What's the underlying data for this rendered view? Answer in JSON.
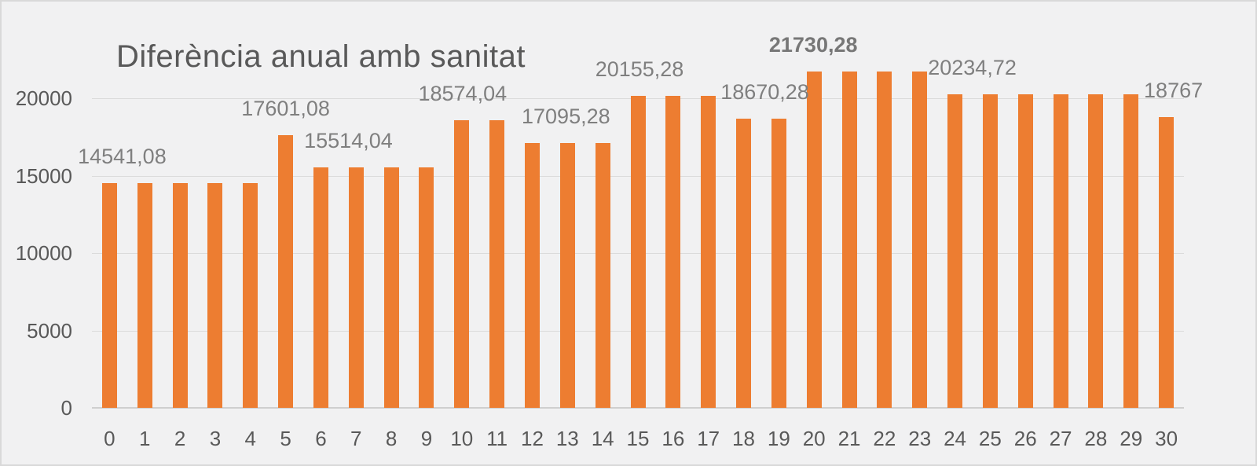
{
  "chart_data": {
    "type": "bar",
    "title": "Diferència anual amb sanitat",
    "xlabel": "",
    "ylabel": "",
    "categories": [
      "0",
      "1",
      "2",
      "3",
      "4",
      "5",
      "6",
      "7",
      "8",
      "9",
      "10",
      "11",
      "12",
      "13",
      "14",
      "15",
      "16",
      "17",
      "18",
      "19",
      "20",
      "21",
      "22",
      "23",
      "24",
      "25",
      "26",
      "27",
      "28",
      "29",
      "30"
    ],
    "values": [
      14541.08,
      14541.08,
      14541.08,
      14541.08,
      14541.08,
      17601.08,
      15514.04,
      15514.04,
      15514.04,
      15514.04,
      18574.04,
      18574.04,
      17095.28,
      17095.28,
      17095.28,
      20155.28,
      20155.28,
      20155.28,
      18670.28,
      18670.28,
      21730.28,
      21730.28,
      21730.28,
      21730.28,
      20234.72,
      20234.72,
      20234.72,
      20234.72,
      20234.72,
      20234.72,
      18767
    ],
    "ylim": [
      0,
      22000
    ],
    "yticks": [
      {
        "value": 0,
        "label": "0"
      },
      {
        "value": 5000,
        "label": "5000"
      },
      {
        "value": 10000,
        "label": "10000"
      },
      {
        "value": 15000,
        "label": "15000"
      },
      {
        "value": 20000,
        "label": "20000"
      }
    ],
    "grid": true,
    "legend": "none",
    "bar_color": "#ED7D31",
    "data_labels": [
      {
        "text": "14541,08",
        "bar": 0,
        "dx": 16,
        "bold": false
      },
      {
        "text": "17601,08",
        "bar": 5,
        "dx": 0,
        "bold": false
      },
      {
        "text": "15514,04",
        "bar": 6,
        "dx": 35,
        "bold": false
      },
      {
        "text": "18574,04",
        "bar": 10,
        "dx": 1,
        "bold": false
      },
      {
        "text": "17095,28",
        "bar": 13,
        "dx": -2,
        "bold": false
      },
      {
        "text": "20155,28",
        "bar": 15,
        "dx": 2,
        "bold": false
      },
      {
        "text": "18670,28",
        "bar": 18,
        "dx": 27,
        "bold": false
      },
      {
        "text": "21730,28",
        "bar": 20,
        "dx": -1,
        "bold": true
      },
      {
        "text": "20234,72",
        "bar": 24,
        "dx": 22,
        "bold": false
      },
      {
        "text": "18767",
        "bar": 30,
        "dx": 9,
        "bold": false
      }
    ]
  },
  "colors": {
    "background": "#F1F1F2",
    "frame_border": "#D9D9D9",
    "gridline": "#DBDBDB",
    "axis_line": "#CFCFCF",
    "title_text": "#595959",
    "tick_text": "#595959",
    "data_label_text": "#7F7F7F",
    "bar": "#ED7D31"
  }
}
